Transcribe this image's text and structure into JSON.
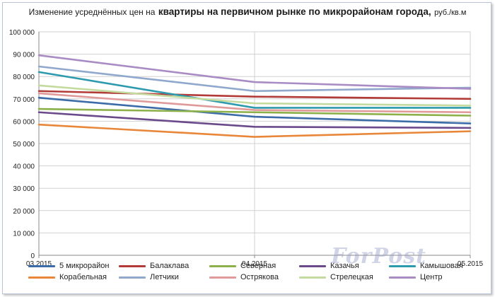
{
  "title": {
    "part1": "Изменение усреднённых цен на",
    "part2": "квартиры на первичном рынке по микрорайонам города,",
    "part3": "руб./кв.м"
  },
  "watermark": "ForPost",
  "chart_data": {
    "type": "line",
    "x": [
      "03.2015",
      "04.2015",
      "05.2015"
    ],
    "ylim": [
      0,
      100000
    ],
    "yticks": [
      "0",
      "10 000",
      "20 000",
      "30 000",
      "40 000",
      "50 000",
      "60 000",
      "70 000",
      "80 000",
      "90 000",
      "100 000"
    ],
    "grid": "horizontal and vertical",
    "legend_position": "bottom",
    "series": [
      {
        "name": "5 микрорайон",
        "color": "#3c6ca8",
        "values": [
          70500,
          62000,
          59000
        ]
      },
      {
        "name": "Балаклава",
        "color": "#b23a37",
        "values": [
          73500,
          71000,
          70000
        ]
      },
      {
        "name": "Северная",
        "color": "#8cb04a",
        "values": [
          65500,
          64000,
          62500
        ]
      },
      {
        "name": "Казачья",
        "color": "#6b4a8c",
        "values": [
          64000,
          57500,
          57000
        ]
      },
      {
        "name": "Камышовая",
        "color": "#2e9aad",
        "values": [
          82000,
          66000,
          66000
        ]
      },
      {
        "name": "Корабельная",
        "color": "#e8873a",
        "values": [
          58500,
          53000,
          55500
        ]
      },
      {
        "name": "Летчики",
        "color": "#8fa8cc",
        "values": [
          84500,
          73500,
          75000
        ]
      },
      {
        "name": "Острякова",
        "color": "#e09a9a",
        "values": [
          72500,
          65000,
          64000
        ]
      },
      {
        "name": "Стрелецкая",
        "color": "#c4dba0",
        "values": [
          76000,
          68000,
          67000
        ]
      },
      {
        "name": "Центр",
        "color": "#a98cc4",
        "values": [
          89500,
          77500,
          74500
        ]
      }
    ]
  }
}
